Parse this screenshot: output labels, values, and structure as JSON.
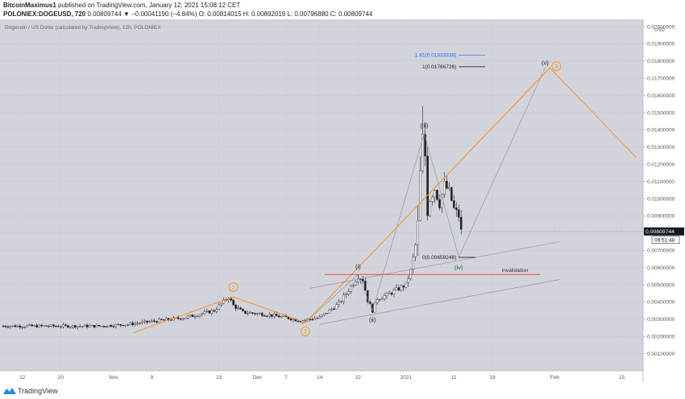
{
  "header": {
    "author": "BitcoinMaximus1",
    "published": " published on TradingView.com, January 12, 2021 15:08:12 CET",
    "symbol": "POLONIEX:DOGEUSD, 720",
    "quote": " 0.00809744 ▼ −0.00041190 (−4.84%) O: 0.00814015 H: 0.00892019 L: 0.00796880 C: 0.00809744"
  },
  "chart_title": "Dogecoin / US Dollar (calculated by TradingView), 12h, POLONIEX",
  "currency_label": "USD",
  "price_tag": {
    "value": "0.00809744",
    "countdown": "09:51:48"
  },
  "footer": {
    "brand": "TradingView"
  },
  "colors": {
    "plot_bg": "#d2d4dc",
    "orange": "#f7931a",
    "red": "#e53935",
    "blue": "#2962ff",
    "candle": "#222222"
  },
  "chart_data": {
    "type": "candlestick",
    "symbol": "DOGEUSD",
    "ylim": [
      0,
      0.02
    ],
    "y_ticks": [
      "0.00100000",
      "0.00200000",
      "0.00300000",
      "0.00400000",
      "0.00500000",
      "0.00600000",
      "0.00700000",
      "0.00800000",
      "0.00900000",
      "0.01000000",
      "0.01100000",
      "0.01200000",
      "0.01300000",
      "0.01400000",
      "0.01500000",
      "0.01600000",
      "0.01700000",
      "0.01800000",
      "0.01900000",
      "0.02000000"
    ],
    "x_ticks": [
      {
        "label": "12",
        "t": 4
      },
      {
        "label": "20",
        "t": 12
      },
      {
        "label": "Nov",
        "t": 23
      },
      {
        "label": "9",
        "t": 31
      },
      {
        "label": "23",
        "t": 45
      },
      {
        "label": "Dec",
        "t": 53
      },
      {
        "label": "7",
        "t": 59
      },
      {
        "label": "14",
        "t": 66
      },
      {
        "label": "22",
        "t": 74
      },
      {
        "label": "2021",
        "t": 84
      },
      {
        "label": "11",
        "t": 94
      },
      {
        "label": "19",
        "t": 102
      },
      {
        "label": "Feb",
        "t": 115
      },
      {
        "label": "15",
        "t": 129
      }
    ],
    "close_path": [
      [
        0,
        0.0026
      ],
      [
        10,
        0.0026
      ],
      [
        16,
        0.0026
      ],
      [
        20,
        0.0026
      ],
      [
        26,
        0.0027
      ],
      [
        32,
        0.0029
      ],
      [
        38,
        0.0031
      ],
      [
        44,
        0.0035
      ],
      [
        47,
        0.0043
      ],
      [
        48,
        0.0038
      ],
      [
        50,
        0.0034
      ],
      [
        54,
        0.0033
      ],
      [
        59,
        0.0031
      ],
      [
        62,
        0.0029
      ],
      [
        66,
        0.0031
      ],
      [
        70,
        0.0039
      ],
      [
        72,
        0.0047
      ],
      [
        74,
        0.0055
      ],
      [
        75,
        0.0053
      ],
      [
        76,
        0.0041
      ],
      [
        77,
        0.0035
      ],
      [
        78,
        0.0042
      ],
      [
        80,
        0.0044
      ],
      [
        82,
        0.0047
      ],
      [
        84,
        0.005
      ],
      [
        85,
        0.0058
      ],
      [
        86,
        0.0073
      ],
      [
        86.5,
        0.0086
      ],
      [
        87,
        0.0115
      ],
      [
        87.5,
        0.0135
      ],
      [
        88,
        0.0125
      ],
      [
        88.5,
        0.0092
      ],
      [
        89,
        0.01
      ],
      [
        90,
        0.0106
      ],
      [
        91,
        0.0097
      ],
      [
        92,
        0.0108
      ],
      [
        93,
        0.0104
      ],
      [
        94,
        0.0094
      ],
      [
        95,
        0.009
      ],
      [
        95.5,
        0.0081
      ]
    ],
    "elliott_waves": {
      "primary": [
        {
          "label": "1",
          "t": 48,
          "p": 0.0043
        },
        {
          "label": "2",
          "t": 63,
          "p": 0.0028
        },
        {
          "label": "3",
          "t": 114,
          "p": 0.0176
        }
      ],
      "minor": [
        {
          "label": "(i)",
          "t": 74,
          "p": 0.0056
        },
        {
          "label": "(ii)",
          "t": 77,
          "p": 0.0035
        },
        {
          "label": "(iii)",
          "t": 87.8,
          "p": 0.0138
        },
        {
          "label": "(iv)",
          "t": 95,
          "p": 0.0066
        },
        {
          "label": "(v)",
          "t": 113,
          "p": 0.0176
        }
      ]
    },
    "fib_levels": [
      {
        "label": "1.61(0.01833338)",
        "price": 0.01833338
      },
      {
        "label": "1(0.01766726)",
        "price": 0.01766726
      },
      {
        "label": "0(0.00659248)",
        "price": 0.00659248
      }
    ],
    "invalidation": {
      "label": "invalidation",
      "price": 0.0056
    }
  }
}
